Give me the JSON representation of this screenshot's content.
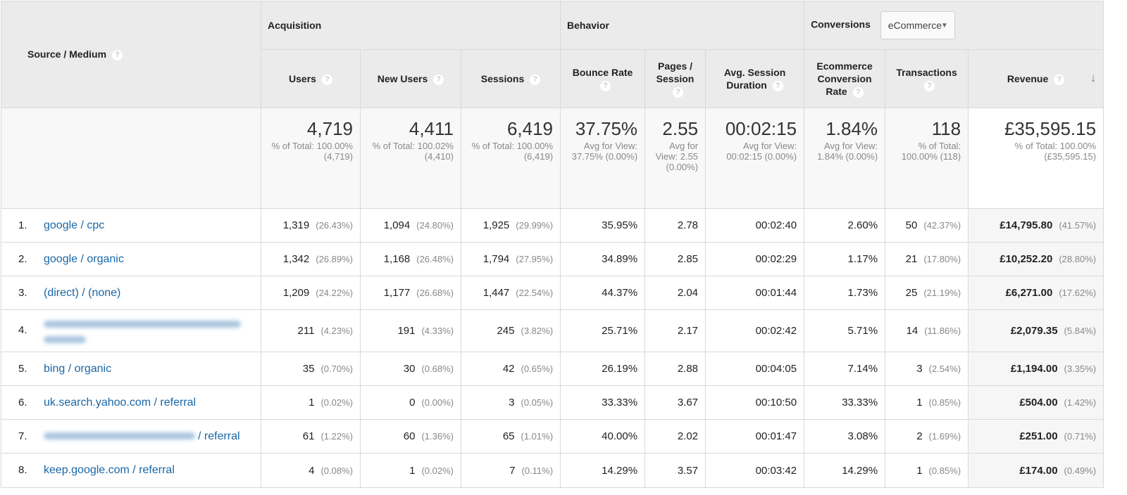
{
  "header": {
    "source_medium": "Source / Medium",
    "groups": {
      "acquisition": "Acquisition",
      "behavior": "Behavior",
      "conversions": "Conversions"
    },
    "conversion_select": "eCommerce",
    "help_glyph": "?",
    "sort_arrow": "↓",
    "columns": [
      "Users",
      "New Users",
      "Sessions",
      "Bounce Rate",
      "Pages / Session",
      "Avg. Session Duration",
      "Ecommerce Conversion Rate",
      "Transactions",
      "Revenue"
    ]
  },
  "totals": [
    {
      "value": "4,719",
      "sub": "% of Total: 100.00% (4,719)"
    },
    {
      "value": "4,411",
      "sub": "% of Total: 100.02% (4,410)"
    },
    {
      "value": "6,419",
      "sub": "% of Total: 100.00% (6,419)"
    },
    {
      "value": "37.75%",
      "sub": "Avg for View: 37.75% (0.00%)"
    },
    {
      "value": "2.55",
      "sub": "Avg for View: 2.55 (0.00%)"
    },
    {
      "value": "00:02:15",
      "sub": "Avg for View: 00:02:15 (0.00%)"
    },
    {
      "value": "1.84%",
      "sub": "Avg for View: 1.84% (0.00%)"
    },
    {
      "value": "118",
      "sub": "% of Total: 100.00% (118)"
    },
    {
      "value": "£35,595.15",
      "sub": "% of Total: 100.00% (£35,595.15)"
    }
  ],
  "rows": [
    {
      "index": "1.",
      "source": "google / cpc",
      "blurred": false,
      "users": [
        "1,319",
        "(26.43%)"
      ],
      "new_users": [
        "1,094",
        "(24.80%)"
      ],
      "sessions": [
        "1,925",
        "(29.99%)"
      ],
      "bounce": "35.95%",
      "pages": "2.78",
      "duration": "00:02:40",
      "conv_rate": "2.60%",
      "transactions": [
        "50",
        "(42.37%)"
      ],
      "revenue": [
        "£14,795.80",
        "(41.57%)"
      ]
    },
    {
      "index": "2.",
      "source": "google / organic",
      "blurred": false,
      "users": [
        "1,342",
        "(26.89%)"
      ],
      "new_users": [
        "1,168",
        "(26.48%)"
      ],
      "sessions": [
        "1,794",
        "(27.95%)"
      ],
      "bounce": "34.89%",
      "pages": "2.85",
      "duration": "00:02:29",
      "conv_rate": "1.17%",
      "transactions": [
        "21",
        "(17.80%)"
      ],
      "revenue": [
        "£10,252.20",
        "(28.80%)"
      ]
    },
    {
      "index": "3.",
      "source": "(direct) / (none)",
      "blurred": false,
      "users": [
        "1,209",
        "(24.22%)"
      ],
      "new_users": [
        "1,177",
        "(26.68%)"
      ],
      "sessions": [
        "1,447",
        "(22.54%)"
      ],
      "bounce": "44.37%",
      "pages": "2.04",
      "duration": "00:01:44",
      "conv_rate": "1.73%",
      "transactions": [
        "25",
        "(21.19%)"
      ],
      "revenue": [
        "£6,271.00",
        "(17.62%)"
      ]
    },
    {
      "index": "4.",
      "source": "",
      "blurred": true,
      "users": [
        "211",
        "(4.23%)"
      ],
      "new_users": [
        "191",
        "(4.33%)"
      ],
      "sessions": [
        "245",
        "(3.82%)"
      ],
      "bounce": "25.71%",
      "pages": "2.17",
      "duration": "00:02:42",
      "conv_rate": "5.71%",
      "transactions": [
        "14",
        "(11.86%)"
      ],
      "revenue": [
        "£2,079.35",
        "(5.84%)"
      ]
    },
    {
      "index": "5.",
      "source": "bing / organic",
      "blurred": false,
      "users": [
        "35",
        "(0.70%)"
      ],
      "new_users": [
        "30",
        "(0.68%)"
      ],
      "sessions": [
        "42",
        "(0.65%)"
      ],
      "bounce": "26.19%",
      "pages": "2.88",
      "duration": "00:04:05",
      "conv_rate": "7.14%",
      "transactions": [
        "3",
        "(2.54%)"
      ],
      "revenue": [
        "£1,194.00",
        "(3.35%)"
      ]
    },
    {
      "index": "6.",
      "source": "uk.search.yahoo.com / referral",
      "blurred": false,
      "users": [
        "1",
        "(0.02%)"
      ],
      "new_users": [
        "0",
        "(0.00%)"
      ],
      "sessions": [
        "3",
        "(0.05%)"
      ],
      "bounce": "33.33%",
      "pages": "3.67",
      "duration": "00:10:50",
      "conv_rate": "33.33%",
      "transactions": [
        "1",
        "(0.85%)"
      ],
      "revenue": [
        "£504.00",
        "(1.42%)"
      ]
    },
    {
      "index": "7.",
      "source": "/ referral",
      "blurred": "partial",
      "users": [
        "61",
        "(1.22%)"
      ],
      "new_users": [
        "60",
        "(1.36%)"
      ],
      "sessions": [
        "65",
        "(1.01%)"
      ],
      "bounce": "40.00%",
      "pages": "2.02",
      "duration": "00:01:47",
      "conv_rate": "3.08%",
      "transactions": [
        "2",
        "(1.69%)"
      ],
      "revenue": [
        "£251.00",
        "(0.71%)"
      ]
    },
    {
      "index": "8.",
      "source": "keep.google.com / referral",
      "blurred": false,
      "users": [
        "4",
        "(0.08%)"
      ],
      "new_users": [
        "1",
        "(0.02%)"
      ],
      "sessions": [
        "7",
        "(0.11%)"
      ],
      "bounce": "14.29%",
      "pages": "3.57",
      "duration": "00:03:42",
      "conv_rate": "14.29%",
      "transactions": [
        "1",
        "(0.85%)"
      ],
      "revenue": [
        "£174.00",
        "(0.49%)"
      ]
    }
  ],
  "colors": {
    "link": "#1a67a5",
    "header_bg": "#ebebeb",
    "muted": "#888888"
  }
}
